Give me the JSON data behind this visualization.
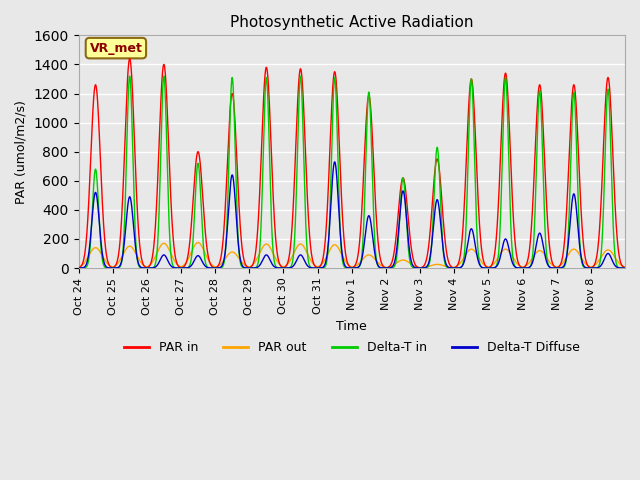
{
  "title": "Photosynthetic Active Radiation",
  "xlabel": "Time",
  "ylabel": "PAR (umol/m2/s)",
  "ylim": [
    0,
    1600
  ],
  "yticks": [
    0,
    200,
    400,
    600,
    800,
    1000,
    1200,
    1400,
    1600
  ],
  "background_color": "#e8e8e8",
  "plot_bg_color": "#e8e8e8",
  "label_box": "VR_met",
  "label_box_color": "#ffff99",
  "label_box_text_color": "#8b0000",
  "colors": {
    "par_in": "#ff0000",
    "par_out": "#ffa500",
    "delta_t_in": "#00cc00",
    "delta_t_diffuse": "#0000cd"
  },
  "x_tick_labels": [
    "Oct 24",
    "Oct 25",
    "Oct 26",
    "Oct 27",
    "Oct 28",
    "Oct 29",
    "Oct 30",
    "Oct 31",
    "Nov 1",
    "Nov 2",
    "Nov 3",
    "Nov 4",
    "Nov 5",
    "Nov 6",
    "Nov 7",
    "Nov 8"
  ],
  "days": 16,
  "day_peaks_par_in": [
    1260,
    1440,
    1400,
    800,
    1200,
    1380,
    1370,
    1350,
    1185,
    620,
    750,
    1300,
    1340,
    1260,
    1260,
    1310
  ],
  "day_peaks_par_out": [
    140,
    150,
    170,
    175,
    110,
    165,
    165,
    160,
    90,
    55,
    25,
    130,
    130,
    120,
    130,
    125
  ],
  "day_peaks_delta_t_in": [
    680,
    1320,
    1320,
    720,
    1310,
    1310,
    1320,
    1310,
    1210,
    620,
    830,
    1300,
    1310,
    1220,
    1210,
    1230
  ],
  "day_peaks_delta_t_diffuse": [
    520,
    490,
    90,
    85,
    640,
    90,
    90,
    730,
    360,
    530,
    470,
    270,
    200,
    240,
    510,
    100
  ]
}
